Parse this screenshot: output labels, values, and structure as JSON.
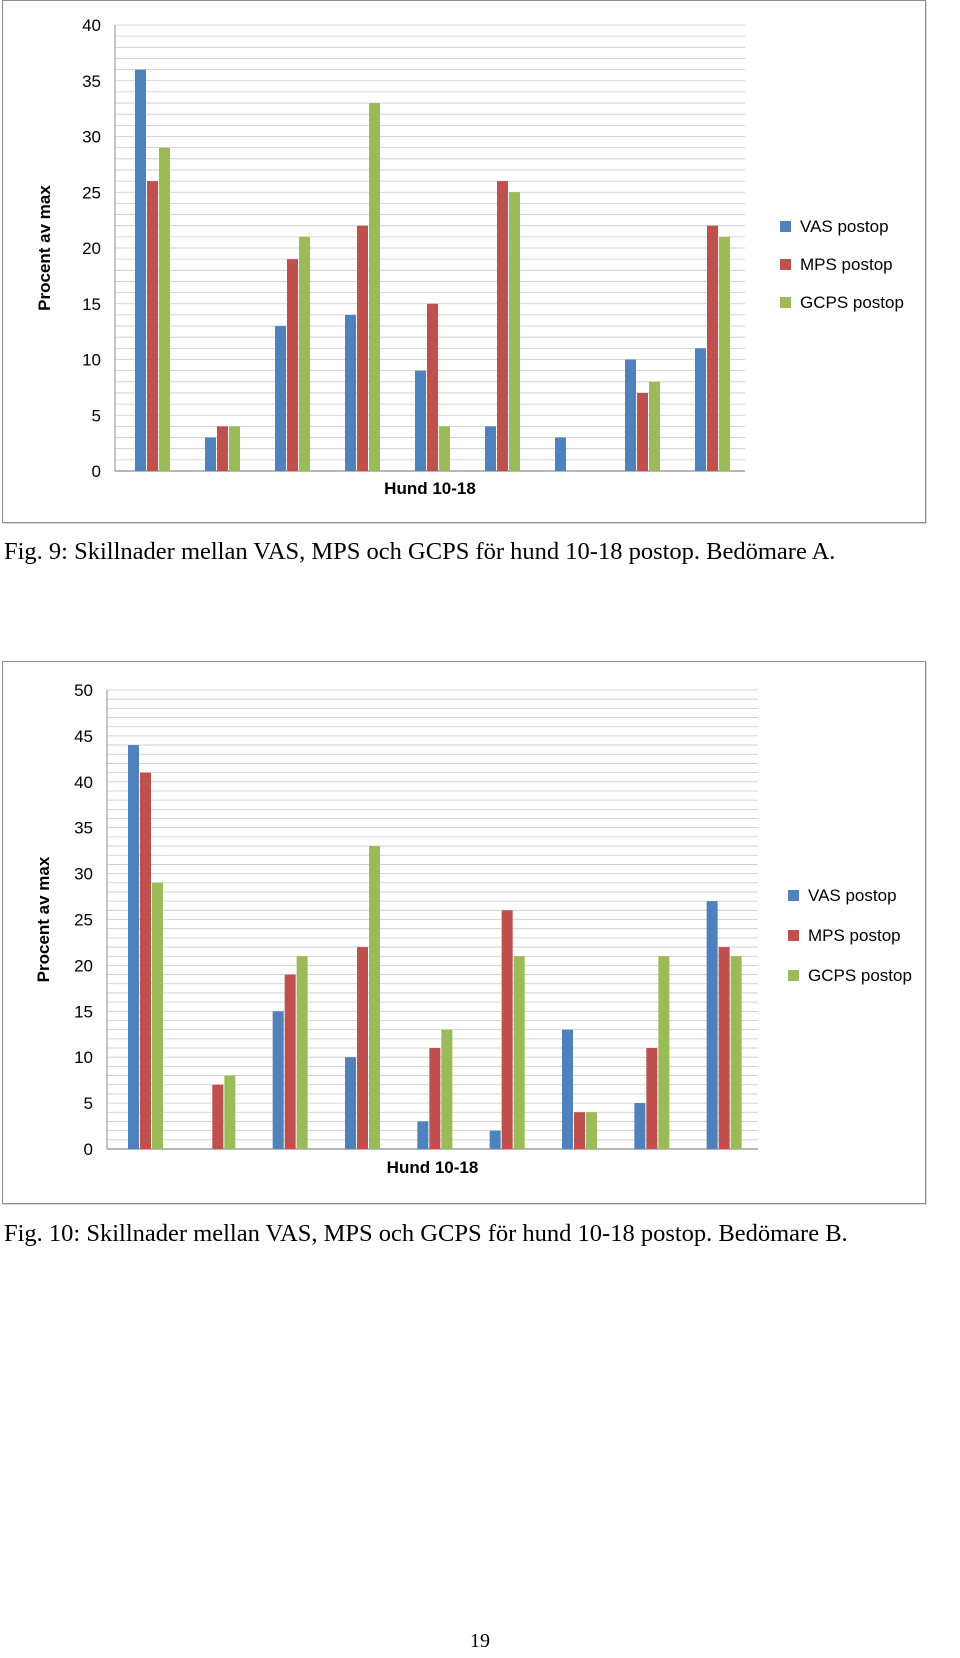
{
  "page": {
    "number": "19"
  },
  "figures": [
    {
      "caption": "Fig. 9: Skillnader mellan VAS, MPS och GCPS för hund 10-18 postop. Bedömare A."
    },
    {
      "caption": "Fig. 10: Skillnader mellan VAS, MPS och GCPS för hund 10-18 postop. Bedömare B."
    }
  ],
  "colors": {
    "VAS": "#4f81bd",
    "MPS": "#c0504d",
    "GCPS": "#9bbb59",
    "grid": "#c8c8c8",
    "frame": "#8c8c8c"
  },
  "chart_data": [
    {
      "type": "bar",
      "title": "",
      "xlabel": "Hund 10-18",
      "ylabel": "Procent av max",
      "ylim": [
        0,
        40
      ],
      "yticks": [
        0,
        5,
        10,
        15,
        20,
        25,
        30,
        35,
        40
      ],
      "grid": true,
      "legend_position": "right",
      "categories": [
        "",
        "",
        "",
        "",
        "",
        "",
        "",
        "",
        ""
      ],
      "series": [
        {
          "name": "VAS postop",
          "color": "#4f81bd",
          "values": [
            36,
            3,
            13,
            14,
            9,
            4,
            3,
            10,
            11
          ]
        },
        {
          "name": "MPS postop",
          "color": "#c0504d",
          "values": [
            26,
            4,
            19,
            22,
            15,
            26,
            0,
            7,
            22
          ]
        },
        {
          "name": "GCPS postop",
          "color": "#9bbb59",
          "values": [
            29,
            4,
            21,
            33,
            4,
            25,
            0,
            8,
            21
          ]
        }
      ]
    },
    {
      "type": "bar",
      "title": "",
      "xlabel": "Hund 10-18",
      "ylabel": "Procent av max",
      "ylim": [
        0,
        50
      ],
      "yticks": [
        0,
        5,
        10,
        15,
        20,
        25,
        30,
        35,
        40,
        45,
        50
      ],
      "grid": true,
      "legend_position": "right",
      "categories": [
        "",
        "",
        "",
        "",
        "",
        "",
        "",
        "",
        ""
      ],
      "series": [
        {
          "name": "VAS postop",
          "color": "#4f81bd",
          "values": [
            44,
            0,
            15,
            10,
            3,
            2,
            13,
            5,
            27
          ]
        },
        {
          "name": "MPS postop",
          "color": "#c0504d",
          "values": [
            41,
            7,
            19,
            22,
            11,
            26,
            4,
            11,
            22
          ]
        },
        {
          "name": "GCPS postop",
          "color": "#9bbb59",
          "values": [
            29,
            8,
            21,
            33,
            13,
            21,
            4,
            21,
            21
          ]
        }
      ]
    }
  ]
}
